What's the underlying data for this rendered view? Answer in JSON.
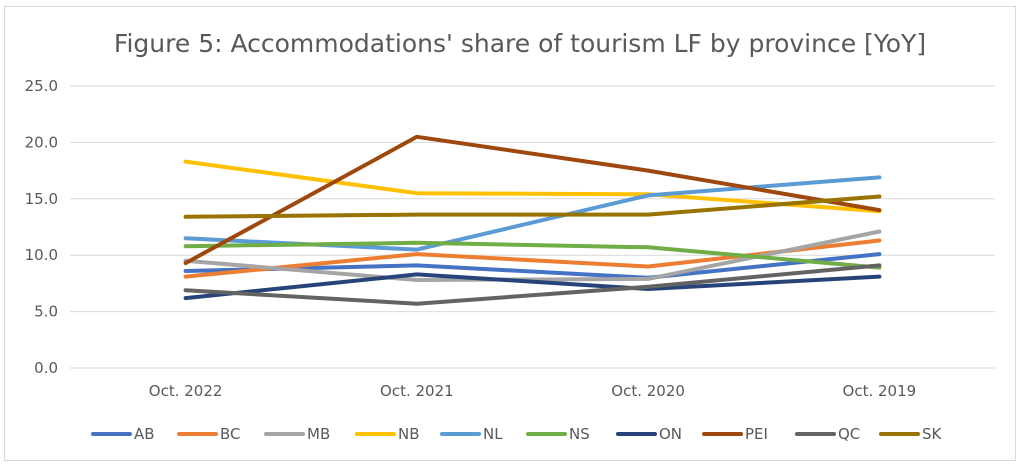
{
  "chart_data": {
    "type": "line",
    "title": "Figure 5: Accommodations' share of tourism LF by province [YoY]",
    "xlabel": "",
    "ylabel": "",
    "categories": [
      "Oct. 2022",
      "Oct. 2021",
      "Oct. 2020",
      "Oct. 2019"
    ],
    "ylim": [
      0,
      25
    ],
    "yticks": [
      "0.0",
      "5.0",
      "10.0",
      "15.0",
      "20.0",
      "25.0"
    ],
    "grid": true,
    "legend_position": "bottom",
    "series": [
      {
        "name": "AB",
        "color": "#4472C4",
        "values": [
          8.6,
          9.1,
          8.0,
          10.1
        ]
      },
      {
        "name": "BC",
        "color": "#ED7D31",
        "values": [
          8.1,
          10.1,
          9.0,
          11.3
        ]
      },
      {
        "name": "MB",
        "color": "#A5A5A5",
        "values": [
          9.5,
          7.8,
          7.9,
          12.1
        ]
      },
      {
        "name": "NB",
        "color": "#FFC000",
        "values": [
          18.3,
          15.5,
          15.4,
          13.9
        ]
      },
      {
        "name": "NL",
        "color": "#5B9BD5",
        "values": [
          11.5,
          10.5,
          15.3,
          16.9
        ]
      },
      {
        "name": "NS",
        "color": "#70AD47",
        "values": [
          10.8,
          11.1,
          10.7,
          8.9
        ]
      },
      {
        "name": "ON",
        "color": "#264478",
        "values": [
          6.2,
          8.3,
          7.0,
          8.1
        ]
      },
      {
        "name": "PEI",
        "color": "#9E480E",
        "values": [
          9.3,
          20.5,
          17.5,
          14.0
        ]
      },
      {
        "name": "QC",
        "color": "#636363",
        "values": [
          6.9,
          5.7,
          7.2,
          9.1
        ]
      },
      {
        "name": "SK",
        "color": "#997300",
        "values": [
          13.4,
          13.6,
          13.6,
          15.2
        ]
      }
    ]
  }
}
